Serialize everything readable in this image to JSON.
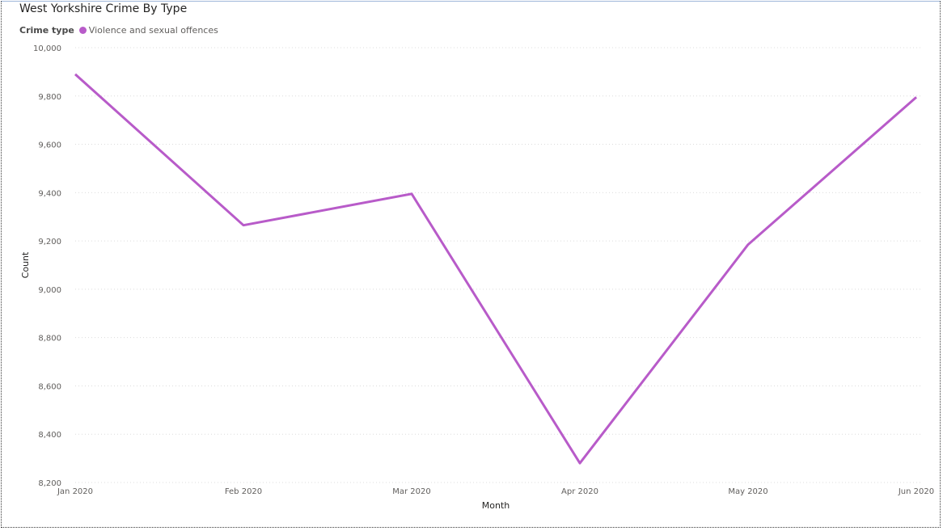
{
  "title": "West Yorkshire Crime By Type",
  "legend": {
    "title": "Crime type",
    "items": [
      {
        "label": "Violence and sexual offences",
        "color": "#b85bc9"
      }
    ]
  },
  "chart_data": {
    "type": "line",
    "title": "West Yorkshire Crime By Type",
    "xlabel": "Month",
    "ylabel": "Count",
    "categories": [
      "Jan 2020",
      "Feb 2020",
      "Mar 2020",
      "Apr 2020",
      "May 2020",
      "Jun 2020"
    ],
    "series": [
      {
        "name": "Violence and sexual offences",
        "color": "#b85bc9",
        "values": [
          9890,
          9265,
          9395,
          8280,
          9185,
          9795
        ]
      }
    ],
    "ylim": [
      8200,
      10000
    ],
    "yticks": [
      8200,
      8400,
      8600,
      8800,
      9000,
      9200,
      9400,
      9600,
      9800,
      10000
    ],
    "ytick_labels": [
      "8,200",
      "8,400",
      "8,600",
      "8,800",
      "9,000",
      "9,200",
      "9,400",
      "9,600",
      "9,800",
      "10,000"
    ],
    "grid": true,
    "legend_position": "top-left"
  }
}
